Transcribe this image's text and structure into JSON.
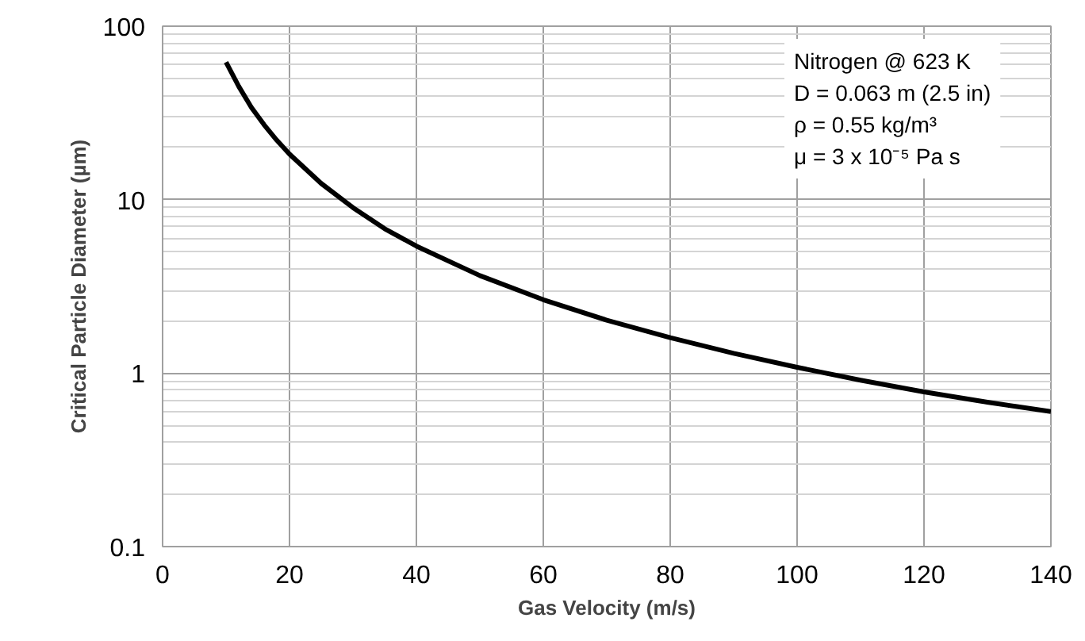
{
  "chart_data": {
    "type": "line",
    "xlabel": "Gas Velocity (m/s)",
    "ylabel": "Critical Particle Diameter (µm)",
    "x": [
      10,
      12,
      14,
      16,
      18,
      20,
      25,
      30,
      35,
      40,
      50,
      60,
      70,
      80,
      90,
      100,
      110,
      120,
      130,
      140
    ],
    "series": [
      {
        "color": "#000000",
        "values": [
          62,
          45,
          34,
          27,
          22,
          18.3,
          12.4,
          9,
          6.8,
          5.4,
          3.65,
          2.65,
          2.02,
          1.6,
          1.3,
          1.08,
          0.91,
          0.78,
          0.68,
          0.6
        ]
      }
    ],
    "xlim": [
      0,
      140
    ],
    "xticks": [
      0,
      20,
      40,
      60,
      80,
      100,
      120,
      140
    ],
    "ylim": [
      0.1,
      100
    ],
    "yticks": [
      0.1,
      1,
      10,
      100
    ],
    "log": "y",
    "grid": true,
    "marker": "none",
    "line_style": "solid",
    "annotations": [
      "Nitrogen @ 623 K",
      "D = 0.063 m (2.5 in)",
      "ρ = 0.55 kg/m³",
      "μ = 3 x 10⁻⁵ Pa s"
    ]
  }
}
